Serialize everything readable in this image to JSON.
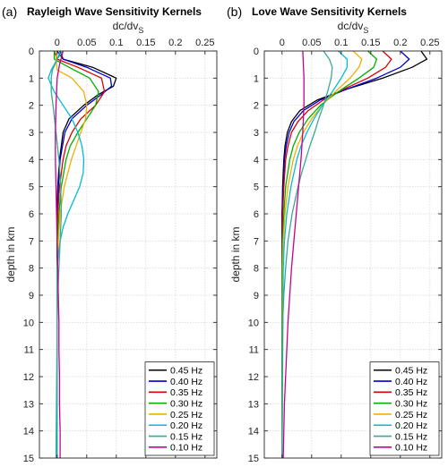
{
  "chart_data": [
    {
      "type": "line",
      "panel_label": "(a)",
      "title": "Rayleigh Wave Sensitivity Kernels",
      "xlabel": "dc/dv",
      "xlabel_sub": "S",
      "ylabel": "depth in km",
      "xlim": [
        -0.03,
        0.27
      ],
      "ylim": [
        15,
        0
      ],
      "xticks": [
        0,
        0.05,
        0.1,
        0.15,
        0.2,
        0.25
      ],
      "xtick_labels": [
        "0",
        "0.05",
        "0.1",
        "0.15",
        "0.2",
        "0.25"
      ],
      "yticks": [
        0,
        1,
        2,
        3,
        4,
        5,
        6,
        7,
        8,
        9,
        10,
        11,
        12,
        13,
        14,
        15
      ],
      "ytick_labels": [
        "0",
        "1",
        "2",
        "3",
        "4",
        "5",
        "6",
        "7",
        "8",
        "9",
        "10",
        "11",
        "12",
        "13",
        "14",
        "15"
      ],
      "grid": true,
      "legend_position": "bottom-right",
      "series": [
        {
          "name": "0.45 Hz",
          "color": "#000000",
          "depth": [
            0,
            0.3,
            0.6,
            1.0,
            1.3,
            1.6,
            2.0,
            2.5,
            3.0,
            4.0,
            5.0,
            6.0,
            7.0,
            8.0,
            15.0
          ],
          "values": [
            0.005,
            0.01,
            0.06,
            0.1,
            0.095,
            0.07,
            0.045,
            0.02,
            0.01,
            0.004,
            0.001,
            0.0,
            0.0,
            0.0,
            0.0
          ]
        },
        {
          "name": "0.40 Hz",
          "color": "#0000cc",
          "depth": [
            0,
            0.3,
            0.6,
            1.0,
            1.3,
            1.6,
            2.0,
            2.5,
            3.0,
            4.0,
            5.0,
            6.0,
            7.0,
            8.0,
            15.0
          ],
          "values": [
            0.0,
            0.01,
            0.05,
            0.09,
            0.092,
            0.075,
            0.05,
            0.025,
            0.013,
            0.005,
            0.002,
            0.0,
            0.0,
            0.0,
            0.0
          ]
        },
        {
          "name": "0.35 Hz",
          "color": "#dd0000",
          "depth": [
            0,
            0.3,
            0.6,
            1.0,
            1.5,
            2.0,
            2.5,
            3.0,
            3.5,
            4.0,
            5.0,
            6.0,
            7.0,
            8.0,
            15.0
          ],
          "values": [
            -0.005,
            0.0,
            0.035,
            0.075,
            0.08,
            0.065,
            0.04,
            0.025,
            0.015,
            0.01,
            0.004,
            0.001,
            0.0,
            0.0,
            0.0
          ]
        },
        {
          "name": "0.30 Hz",
          "color": "#00b000",
          "depth": [
            0,
            0.3,
            0.6,
            1.0,
            1.5,
            2.0,
            2.5,
            3.0,
            3.5,
            4.0,
            5.0,
            6.0,
            7.0,
            8.0,
            15.0
          ],
          "values": [
            -0.005,
            -0.005,
            0.02,
            0.055,
            0.07,
            0.065,
            0.05,
            0.035,
            0.022,
            0.015,
            0.007,
            0.003,
            0.001,
            0.0,
            0.0
          ]
        },
        {
          "name": "0.25 Hz",
          "color": "#f0b000",
          "depth": [
            0,
            0.3,
            0.7,
            1.0,
            1.5,
            2.0,
            2.5,
            3.0,
            3.5,
            4.0,
            5.0,
            6.0,
            7.0,
            8.0,
            15.0
          ],
          "values": [
            0.0,
            -0.002,
            0.0,
            0.025,
            0.045,
            0.05,
            0.048,
            0.04,
            0.032,
            0.024,
            0.012,
            0.005,
            0.002,
            0.0,
            0.0
          ]
        },
        {
          "name": "0.20 Hz",
          "color": "#00bcd8",
          "depth": [
            0,
            0.3,
            0.7,
            1.0,
            1.5,
            2.0,
            2.5,
            3.0,
            3.5,
            4.0,
            4.5,
            5.0,
            5.5,
            6.0,
            6.5,
            7.0,
            7.5,
            8.0,
            15.0
          ],
          "values": [
            0.005,
            0.0,
            -0.01,
            -0.015,
            -0.005,
            0.01,
            0.025,
            0.035,
            0.042,
            0.045,
            0.044,
            0.038,
            0.028,
            0.018,
            0.01,
            0.005,
            0.002,
            0.0,
            0.0
          ]
        },
        {
          "name": "0.15 Hz",
          "color": "#3aa896",
          "depth": [
            0,
            0.3,
            0.7,
            1.0,
            1.5,
            2.0,
            3.0,
            4.0,
            5.0,
            6.0,
            7.0,
            8.0,
            9.0,
            10.0,
            15.0
          ],
          "values": [
            0.01,
            0.0,
            -0.008,
            -0.01,
            -0.01,
            -0.007,
            -0.002,
            0.003,
            0.006,
            0.007,
            0.005,
            0.003,
            0.001,
            0.0,
            -0.002
          ]
        },
        {
          "name": "0.10 Hz",
          "color": "#c8008c",
          "depth": [
            0,
            0.5,
            1.0,
            2.0,
            3.0,
            4.0,
            5.0,
            6.0,
            7.0,
            8.0,
            9.0,
            10.0,
            11.0,
            12.0,
            13.0,
            14.0,
            15.0
          ],
          "values": [
            0.01,
            0.004,
            0.0,
            -0.002,
            -0.003,
            -0.003,
            -0.002,
            -0.001,
            0.0,
            0.001,
            0.002,
            0.003,
            0.003,
            0.004,
            0.004,
            0.005,
            0.005
          ]
        }
      ]
    },
    {
      "type": "line",
      "panel_label": "(b)",
      "title": "Love Wave Sensitivity Kernels",
      "xlabel": "dc/dv",
      "xlabel_sub": "S",
      "ylabel": "depth in km",
      "xlim": [
        -0.03,
        0.27
      ],
      "ylim": [
        15,
        0
      ],
      "xticks": [
        0,
        0.05,
        0.1,
        0.15,
        0.2,
        0.25
      ],
      "xtick_labels": [
        "0",
        "0.05",
        "0.1",
        "0.15",
        "0.2",
        "0.25"
      ],
      "yticks": [
        0,
        1,
        2,
        3,
        4,
        5,
        6,
        7,
        8,
        9,
        10,
        11,
        12,
        13,
        14,
        15
      ],
      "ytick_labels": [
        "0",
        "1",
        "2",
        "3",
        "4",
        "5",
        "6",
        "7",
        "8",
        "9",
        "10",
        "11",
        "12",
        "13",
        "14",
        "15"
      ],
      "grid": true,
      "legend_position": "bottom-right",
      "series": [
        {
          "name": "0.45 Hz",
          "color": "#000000",
          "depth": [
            0,
            0.3,
            0.6,
            1.0,
            1.4,
            1.8,
            2.2,
            2.6,
            3.0,
            3.5,
            4.0,
            5.0,
            6.0,
            8.0,
            15.0
          ],
          "values": [
            0.235,
            0.245,
            0.22,
            0.17,
            0.11,
            0.06,
            0.03,
            0.016,
            0.009,
            0.005,
            0.003,
            0.001,
            0.0,
            0.0,
            0.0
          ]
        },
        {
          "name": "0.40 Hz",
          "color": "#0000cc",
          "depth": [
            0,
            0.3,
            0.6,
            1.0,
            1.4,
            1.8,
            2.2,
            2.6,
            3.0,
            3.5,
            4.0,
            5.0,
            6.0,
            8.0,
            15.0
          ],
          "values": [
            0.2,
            0.215,
            0.2,
            0.16,
            0.11,
            0.065,
            0.036,
            0.02,
            0.012,
            0.007,
            0.004,
            0.002,
            0.0,
            0.0,
            0.0
          ]
        },
        {
          "name": "0.35 Hz",
          "color": "#dd0000",
          "depth": [
            0,
            0.3,
            0.6,
            1.0,
            1.4,
            1.8,
            2.2,
            2.6,
            3.0,
            3.5,
            4.0,
            5.0,
            6.0,
            8.0,
            15.0
          ],
          "values": [
            0.17,
            0.185,
            0.175,
            0.145,
            0.105,
            0.07,
            0.044,
            0.027,
            0.016,
            0.01,
            0.006,
            0.003,
            0.001,
            0.0,
            0.0
          ]
        },
        {
          "name": "0.30 Hz",
          "color": "#00b000",
          "depth": [
            0,
            0.3,
            0.6,
            1.0,
            1.5,
            2.0,
            2.5,
            3.0,
            3.5,
            4.0,
            5.0,
            6.0,
            7.0,
            8.0,
            15.0
          ],
          "values": [
            0.145,
            0.16,
            0.155,
            0.13,
            0.095,
            0.065,
            0.044,
            0.029,
            0.019,
            0.013,
            0.006,
            0.003,
            0.001,
            0.0,
            0.0
          ]
        },
        {
          "name": "0.25 Hz",
          "color": "#f0b000",
          "depth": [
            0,
            0.3,
            0.6,
            1.0,
            1.5,
            2.0,
            2.5,
            3.0,
            3.5,
            4.0,
            5.0,
            6.0,
            7.0,
            8.0,
            15.0
          ],
          "values": [
            0.12,
            0.135,
            0.13,
            0.115,
            0.09,
            0.068,
            0.05,
            0.036,
            0.026,
            0.019,
            0.01,
            0.005,
            0.002,
            0.001,
            0.0
          ]
        },
        {
          "name": "0.20 Hz",
          "color": "#00bcd8",
          "depth": [
            0,
            0.3,
            0.6,
            1.0,
            1.5,
            2.0,
            2.5,
            3.0,
            3.5,
            4.0,
            5.0,
            6.0,
            7.0,
            8.0,
            15.0
          ],
          "values": [
            0.095,
            0.11,
            0.11,
            0.1,
            0.085,
            0.068,
            0.054,
            0.042,
            0.032,
            0.025,
            0.015,
            0.008,
            0.004,
            0.002,
            0.0
          ]
        },
        {
          "name": "0.15 Hz",
          "color": "#3aa896",
          "depth": [
            0,
            0.3,
            0.6,
            1.0,
            1.5,
            2.0,
            2.5,
            3.0,
            3.5,
            4.0,
            4.5,
            5.0,
            6.0,
            7.0,
            8.0,
            9.0,
            10.0,
            15.0
          ],
          "values": [
            0.07,
            0.08,
            0.085,
            0.083,
            0.077,
            0.07,
            0.062,
            0.055,
            0.047,
            0.04,
            0.033,
            0.027,
            0.017,
            0.01,
            0.006,
            0.003,
            0.001,
            0.0
          ]
        },
        {
          "name": "0.10 Hz",
          "color": "#c8008c",
          "depth": [
            0,
            1.0,
            2.0,
            3.0,
            4.0,
            5.0,
            6.0,
            7.0,
            8.0,
            9.0,
            10.0,
            11.0,
            12.0,
            13.0,
            14.0,
            15.0
          ],
          "values": [
            0.035,
            0.037,
            0.037,
            0.035,
            0.032,
            0.028,
            0.024,
            0.02,
            0.016,
            0.013,
            0.01,
            0.008,
            0.006,
            0.004,
            0.003,
            0.002
          ]
        }
      ]
    }
  ]
}
